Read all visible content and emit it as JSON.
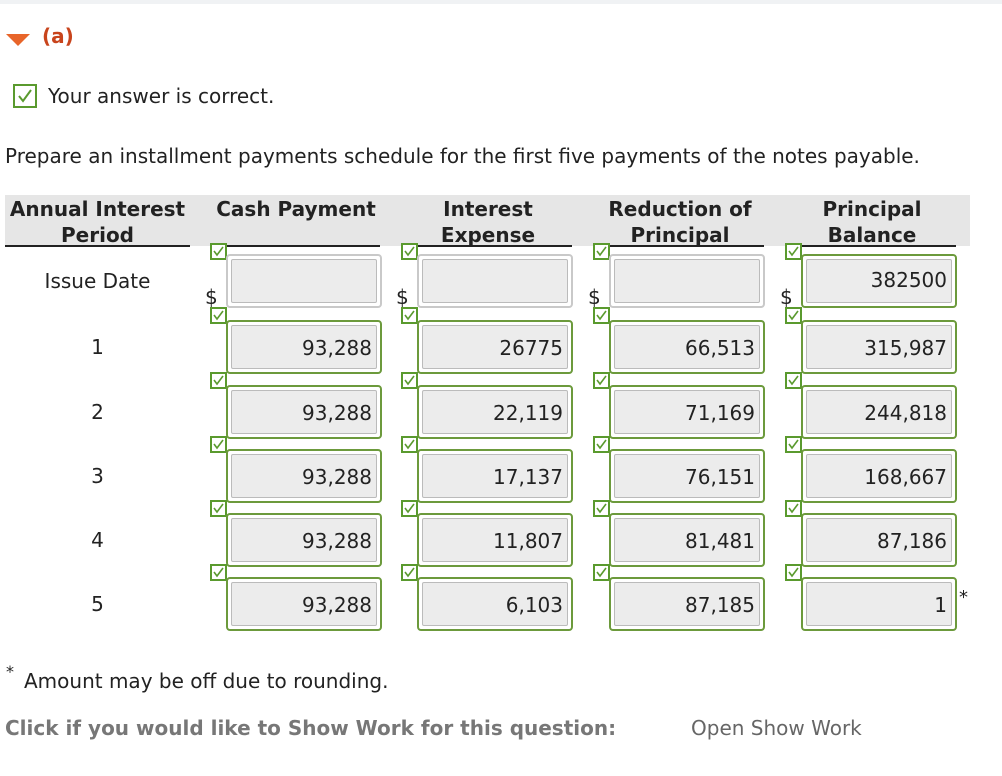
{
  "part": {
    "label": "(a)"
  },
  "status": "Your answer is correct.",
  "instruction": "Prepare an installment payments schedule for the first five payments of the notes payable.",
  "currency_symbol": "$",
  "table": {
    "headers": [
      "Annual Interest Period",
      "Cash Payment",
      "Interest Expense",
      "Reduction of Principal",
      "Principal Balance"
    ],
    "rows": [
      [
        "Issue Date",
        null,
        null,
        null,
        "382500"
      ],
      [
        "1",
        "93,288",
        "26775",
        "66,513",
        "315,987"
      ],
      [
        "2",
        "93,288",
        "22,119",
        "71,169",
        "244,818"
      ],
      [
        "3",
        "93,288",
        "17,137",
        "76,151",
        "168,667"
      ],
      [
        "4",
        "93,288",
        "11,807",
        "81,481",
        "87,186"
      ],
      [
        "5",
        "93,288",
        "6,103",
        "87,185",
        "1"
      ]
    ]
  },
  "footnote": {
    "marker": "*",
    "text": "Amount may be off due to rounding."
  },
  "show_work": {
    "prompt": "Click if you would like to Show Work for this question:",
    "link": "Open Show Work"
  }
}
